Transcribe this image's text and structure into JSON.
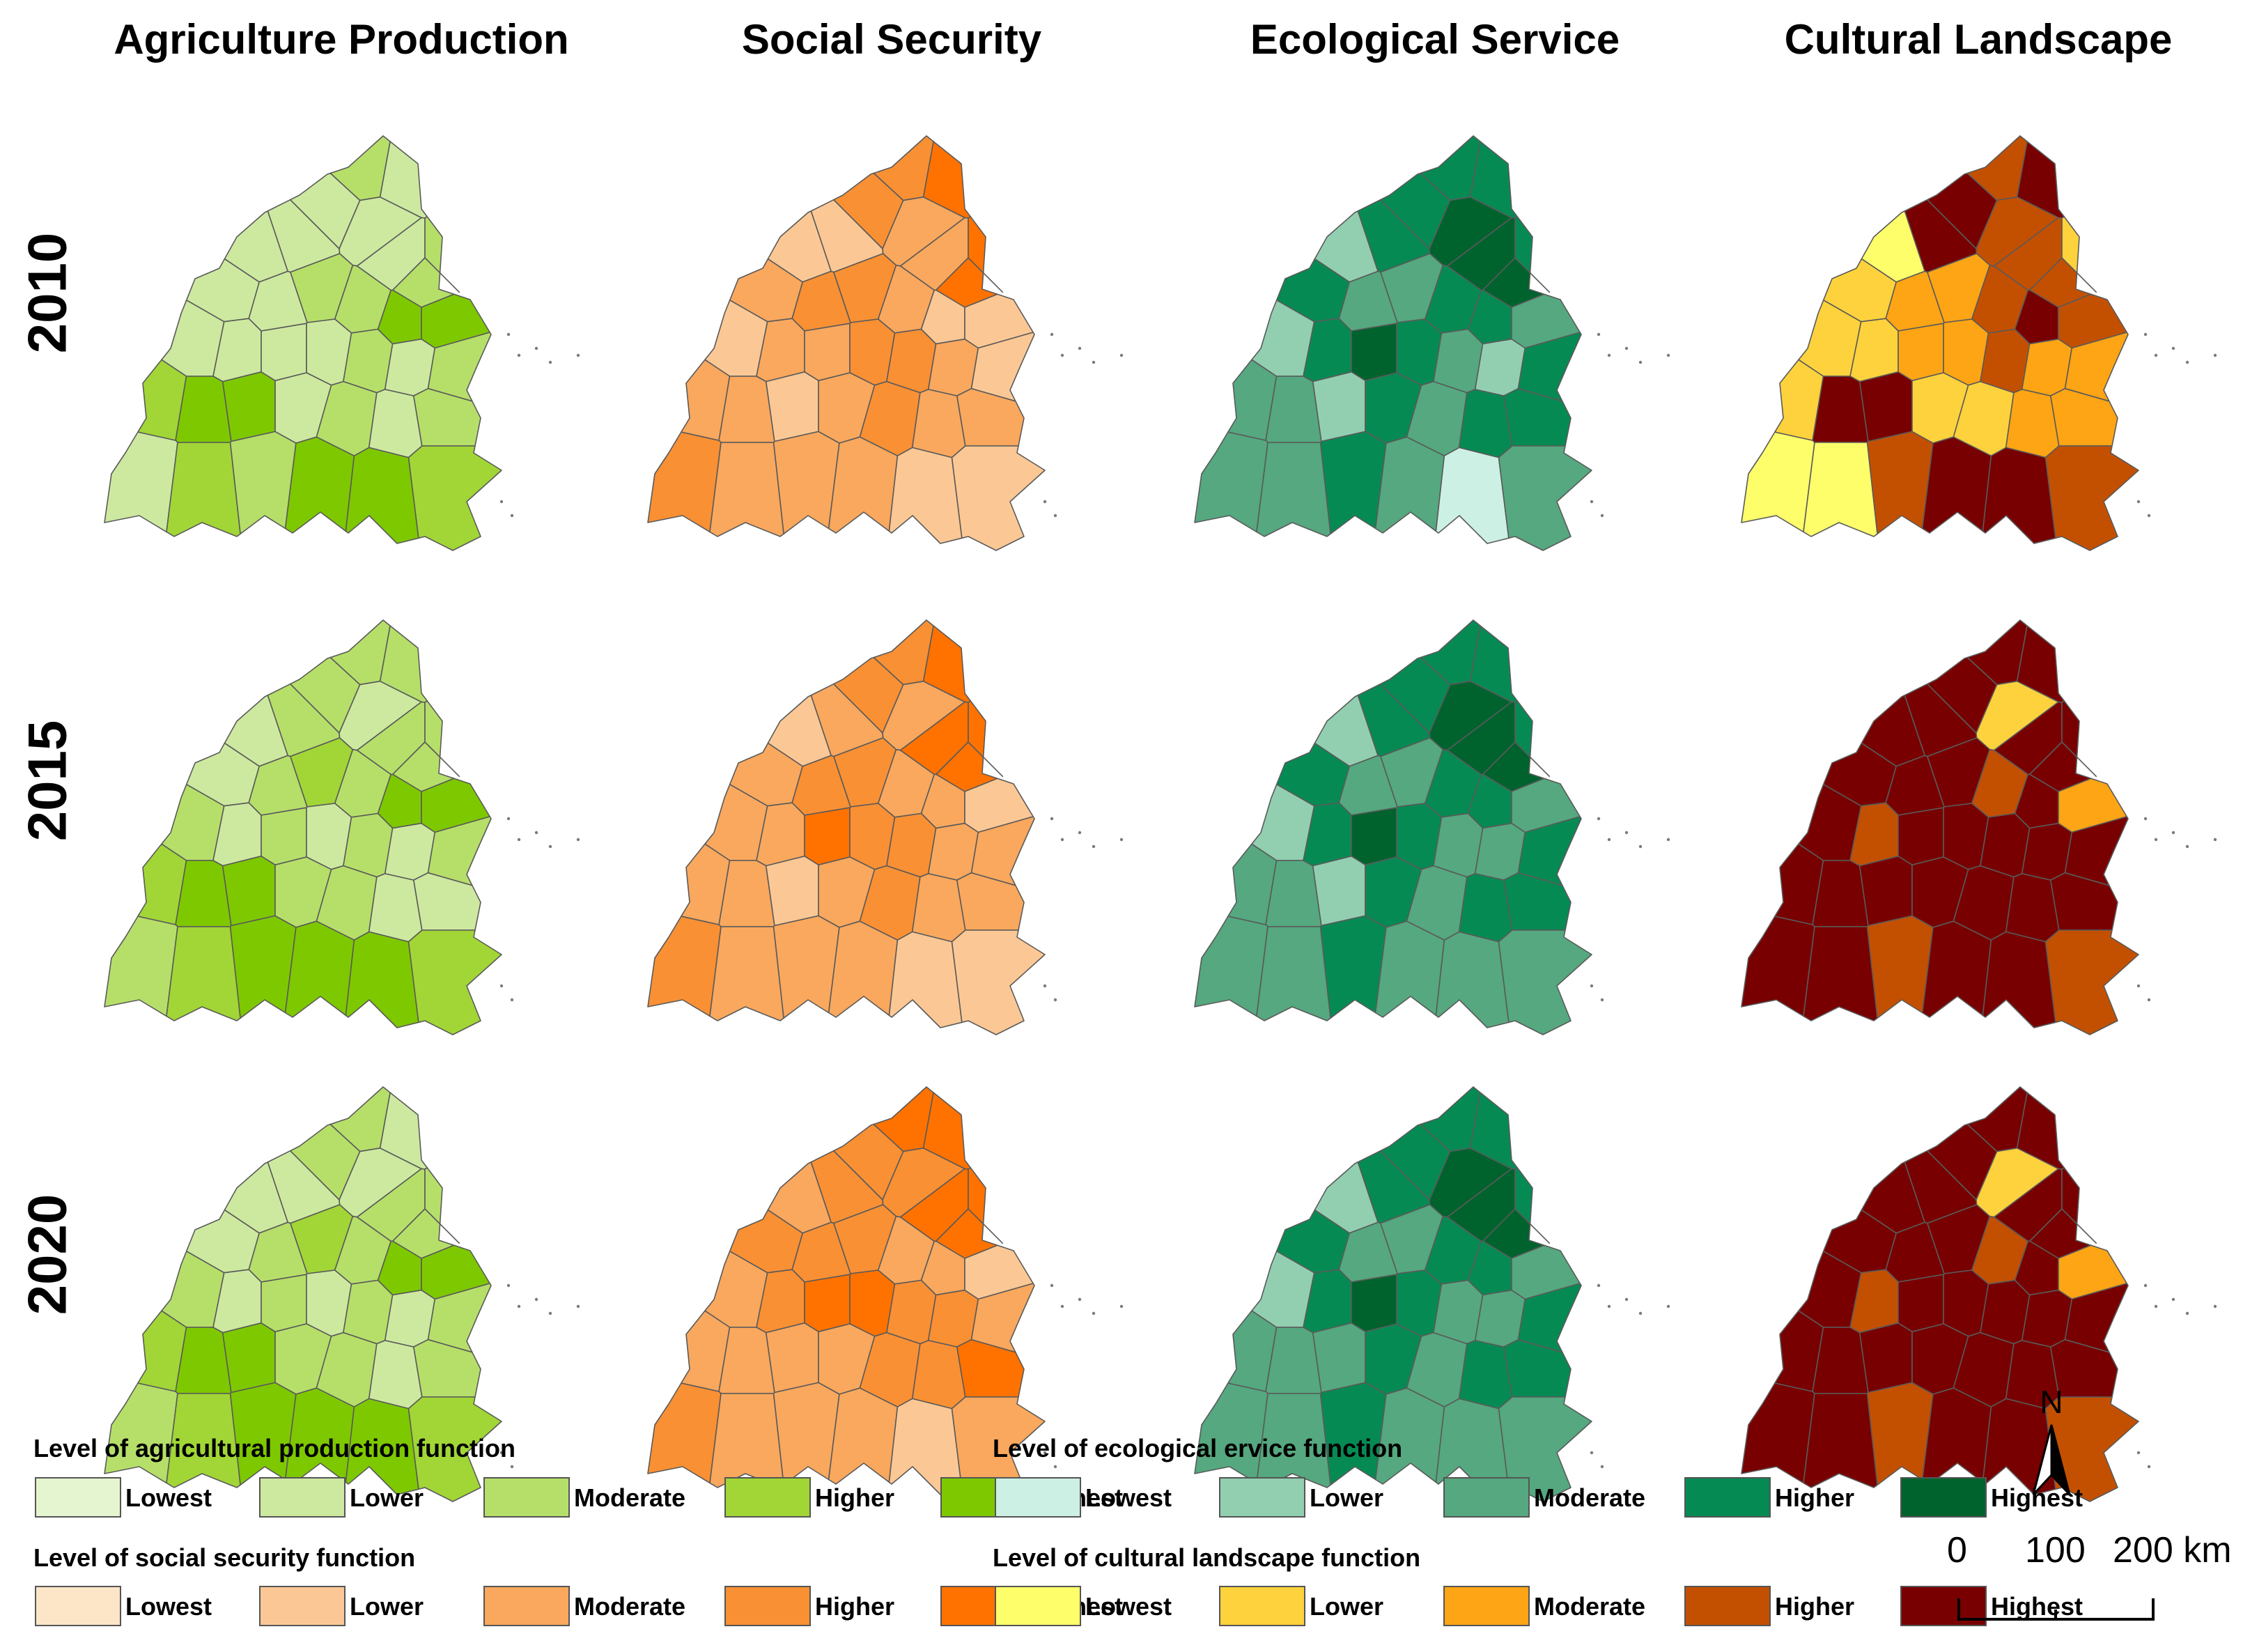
{
  "columns": [
    {
      "id": "agri",
      "title": "Agriculture  Production"
    },
    {
      "id": "social",
      "title": "Social Security"
    },
    {
      "id": "eco",
      "title": "Ecological Service"
    },
    {
      "id": "cult",
      "title": "Cultural Landscape"
    }
  ],
  "years": [
    "2010",
    "2015",
    "2020"
  ],
  "palettes": {
    "agri": [
      "#e5f5cf",
      "#cde9a0",
      "#b6df6a",
      "#a1d636",
      "#7ec800"
    ],
    "social": [
      "#fde5c8",
      "#fbc895",
      "#f9a85e",
      "#f99034",
      "#ff7200"
    ],
    "eco": [
      "#cdf0e4",
      "#92cfb1",
      "#55a87f",
      "#068a54",
      "#00632e"
    ],
    "cult": [
      "#fefe6b",
      "#fed23c",
      "#fda514",
      "#c35000",
      "#780000"
    ]
  },
  "legend": {
    "level_labels": [
      "Lowest",
      "Lower",
      "Moderate",
      "Higher",
      "Highest"
    ],
    "agri_title": "Level of agricultural production function",
    "eco_title": "Level of ecological ervice function",
    "social_title": "Level of social security function",
    "cult_title": "Level of cultural landscape function"
  },
  "north_arrow": {
    "letter": "N"
  },
  "scale_bar": {
    "labels": [
      "0",
      "100",
      "200 km"
    ]
  },
  "map_levels": {
    "agri": {
      "2010": [
        2,
        1,
        1,
        1,
        1,
        1,
        2,
        2,
        1,
        1,
        1,
        2,
        2,
        4,
        4,
        1,
        1,
        1,
        1,
        2,
        1,
        2,
        3,
        4,
        4,
        1,
        2,
        1,
        2,
        1,
        3,
        2,
        4,
        4,
        3
      ],
      "2015": [
        2,
        2,
        2,
        2,
        1,
        2,
        2,
        2,
        1,
        1,
        2,
        3,
        2,
        4,
        4,
        2,
        1,
        2,
        1,
        2,
        1,
        2,
        3,
        4,
        4,
        2,
        2,
        1,
        1,
        2,
        3,
        4,
        4,
        4,
        3
      ],
      "2020": [
        2,
        1,
        2,
        1,
        1,
        2,
        2,
        2,
        1,
        1,
        2,
        3,
        2,
        4,
        4,
        2,
        1,
        2,
        1,
        2,
        1,
        2,
        3,
        4,
        4,
        2,
        2,
        1,
        2,
        2,
        3,
        4,
        4,
        4,
        3
      ]
    },
    "social": {
      "2010": [
        3,
        4,
        3,
        1,
        2,
        2,
        4,
        4,
        1,
        2,
        3,
        3,
        2,
        1,
        1,
        1,
        2,
        2,
        3,
        3,
        2,
        1,
        2,
        2,
        1,
        2,
        3,
        2,
        2,
        3,
        2,
        2,
        2,
        1,
        1
      ],
      "2015": [
        3,
        4,
        3,
        2,
        2,
        4,
        4,
        4,
        1,
        2,
        3,
        3,
        2,
        2,
        1,
        2,
        2,
        4,
        3,
        3,
        2,
        2,
        2,
        2,
        1,
        2,
        3,
        2,
        2,
        3,
        2,
        2,
        2,
        1,
        1
      ],
      "2020": [
        4,
        4,
        3,
        3,
        3,
        4,
        4,
        4,
        2,
        3,
        3,
        3,
        2,
        2,
        1,
        2,
        3,
        4,
        4,
        3,
        3,
        2,
        2,
        2,
        2,
        2,
        3,
        3,
        4,
        3,
        2,
        2,
        2,
        1,
        2
      ]
    },
    "eco": {
      "2010": [
        3,
        3,
        3,
        3,
        4,
        4,
        4,
        3,
        1,
        3,
        2,
        2,
        3,
        3,
        2,
        1,
        3,
        4,
        3,
        2,
        1,
        3,
        2,
        2,
        1,
        3,
        2,
        3,
        3,
        2,
        2,
        3,
        2,
        0,
        2
      ],
      "2015": [
        3,
        3,
        3,
        3,
        4,
        4,
        4,
        3,
        1,
        3,
        2,
        2,
        3,
        3,
        2,
        1,
        3,
        4,
        3,
        2,
        2,
        3,
        2,
        2,
        1,
        3,
        2,
        3,
        3,
        2,
        2,
        3,
        2,
        2,
        2
      ],
      "2020": [
        3,
        3,
        3,
        3,
        4,
        4,
        4,
        3,
        1,
        3,
        2,
        2,
        3,
        3,
        2,
        1,
        3,
        4,
        3,
        2,
        2,
        3,
        2,
        2,
        2,
        3,
        2,
        3,
        3,
        2,
        2,
        3,
        2,
        2,
        2
      ]
    },
    "cult": {
      "2010": [
        3,
        4,
        4,
        4,
        3,
        3,
        3,
        1,
        0,
        1,
        2,
        2,
        3,
        4,
        3,
        1,
        1,
        2,
        2,
        3,
        2,
        2,
        1,
        4,
        4,
        1,
        1,
        2,
        2,
        0,
        0,
        3,
        4,
        4,
        3
      ],
      "2015": [
        4,
        4,
        4,
        4,
        1,
        4,
        4,
        4,
        4,
        4,
        4,
        4,
        3,
        4,
        2,
        4,
        3,
        4,
        4,
        4,
        4,
        4,
        4,
        4,
        4,
        4,
        4,
        4,
        4,
        4,
        4,
        3,
        4,
        4,
        3
      ],
      "2020": [
        4,
        4,
        4,
        4,
        1,
        4,
        4,
        4,
        4,
        4,
        4,
        4,
        3,
        4,
        2,
        4,
        3,
        4,
        4,
        4,
        4,
        4,
        4,
        4,
        4,
        4,
        4,
        4,
        4,
        4,
        4,
        3,
        4,
        4,
        3
      ]
    }
  }
}
